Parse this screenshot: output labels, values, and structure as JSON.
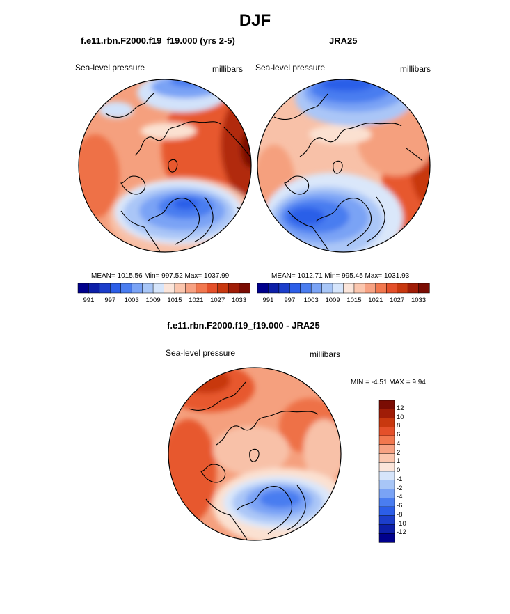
{
  "page_title": "DJF",
  "panels": [
    {
      "title": "f.e11.rbn.F2000.f19_f19.000 (yrs 2-5)",
      "left_label": "Sea-level pressure",
      "right_label": "millibars",
      "stats": "MEAN= 1015.56  Min= 997.52  Max= 1037.99"
    },
    {
      "title": "JRA25",
      "left_label": "Sea-level pressure",
      "right_label": "millibars",
      "stats": "MEAN= 1012.71  Min= 995.45  Max= 1031.93"
    },
    {
      "title": "f.e11.rbn.F2000.f19_f19.000 - JRA25",
      "left_label": "Sea-level pressure",
      "right_label": "millibars",
      "stats": "MIN =  -4.51 MAX =   9.94"
    }
  ],
  "chart_data": [
    {
      "type": "heatmap",
      "title": "f.e11.rbn.F2000.f19_f19.000 (yrs 2-5)",
      "variable": "Sea-level pressure",
      "units": "millibars",
      "season": "DJF",
      "mean": 1015.56,
      "min": 997.52,
      "max": 1037.99,
      "colorbar_levels": [
        991,
        994,
        997,
        1000,
        1003,
        1006,
        1009,
        1012,
        1015,
        1018,
        1021,
        1024,
        1027,
        1030,
        1033
      ],
      "colorbar_tick_labels": [
        "991",
        "997",
        "1003",
        "1009",
        "1015",
        "1021",
        "1027",
        "1033"
      ],
      "colors": [
        "#00008c",
        "#0d1fa8",
        "#1c3ecb",
        "#2c5ee8",
        "#4a7df0",
        "#7aa3f5",
        "#a8c6f7",
        "#d6e5fb",
        "#fbe5da",
        "#fbc6ae",
        "#f7a283",
        "#f2784f",
        "#e4502a",
        "#c8380f",
        "#a01d07",
        "#7a0c03"
      ]
    },
    {
      "type": "heatmap",
      "title": "JRA25",
      "variable": "Sea-level pressure",
      "units": "millibars",
      "season": "DJF",
      "mean": 1012.71,
      "min": 995.45,
      "max": 1031.93,
      "colorbar_levels": [
        991,
        994,
        997,
        1000,
        1003,
        1006,
        1009,
        1012,
        1015,
        1018,
        1021,
        1024,
        1027,
        1030,
        1033
      ],
      "colorbar_tick_labels": [
        "991",
        "997",
        "1003",
        "1009",
        "1015",
        "1021",
        "1027",
        "1033"
      ],
      "colors": [
        "#00008c",
        "#0d1fa8",
        "#1c3ecb",
        "#2c5ee8",
        "#4a7df0",
        "#7aa3f5",
        "#a8c6f7",
        "#d6e5fb",
        "#fbe5da",
        "#fbc6ae",
        "#f7a283",
        "#f2784f",
        "#e4502a",
        "#c8380f",
        "#a01d07",
        "#7a0c03"
      ]
    },
    {
      "type": "heatmap",
      "title": "f.e11.rbn.F2000.f19_f19.000 - JRA25",
      "variable": "Sea-level pressure",
      "units": "millibars",
      "season": "DJF",
      "min": -4.51,
      "max": 9.94,
      "colorbar_levels": [
        -12,
        -10,
        -8,
        -6,
        -4,
        -2,
        -1,
        0,
        1,
        2,
        4,
        6,
        8,
        10,
        12
      ],
      "colorbar_tick_labels": [
        "12",
        "10",
        "8",
        "6",
        "4",
        "2",
        "1",
        "0",
        "-1",
        "-2",
        "-4",
        "-6",
        "-8",
        "-10",
        "-12"
      ],
      "colors": [
        "#00008c",
        "#0d1fa8",
        "#1c3ecb",
        "#2c5ee8",
        "#4a7df0",
        "#7aa3f5",
        "#a8c6f7",
        "#d6e5fb",
        "#fbe5da",
        "#fbc6ae",
        "#f7a283",
        "#f2784f",
        "#e4502a",
        "#c8380f",
        "#a01d07",
        "#7a0c03"
      ]
    }
  ]
}
